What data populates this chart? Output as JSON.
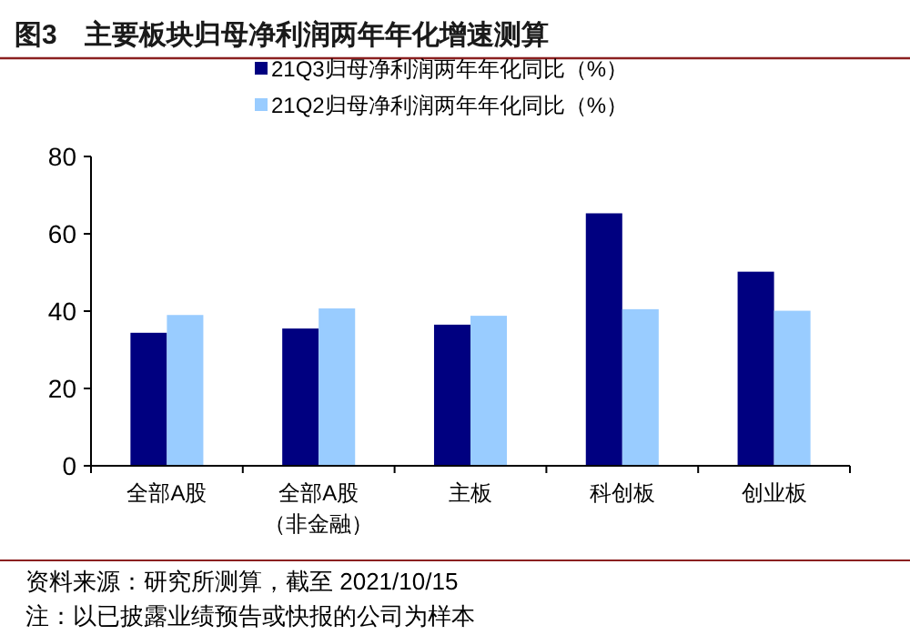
{
  "chart_data": {
    "type": "bar",
    "title": "图3　主要板块归母净利润两年年化增速测算",
    "categories": [
      "全部A股",
      "全部A股（非金融）",
      "主板",
      "科创板",
      "创业板"
    ],
    "series": [
      {
        "name": "21Q3归母净利润两年年化同比（%）",
        "color": "#000080",
        "values": [
          34.4,
          35.5,
          36.5,
          65.3,
          50.2
        ]
      },
      {
        "name": "21Q2归母净利润两年年化同比（%）",
        "color": "#99ccff",
        "values": [
          39.0,
          40.7,
          38.8,
          40.5,
          40.1
        ]
      }
    ],
    "ylim": [
      0,
      80
    ],
    "yticks": [
      0,
      20,
      40,
      60,
      80
    ],
    "grid": false,
    "legend": "top",
    "annotations": [
      "资料来源：研究所测算，截至 2021/10/15",
      "注：以已披露业绩预告或快报的公司为样本"
    ]
  }
}
